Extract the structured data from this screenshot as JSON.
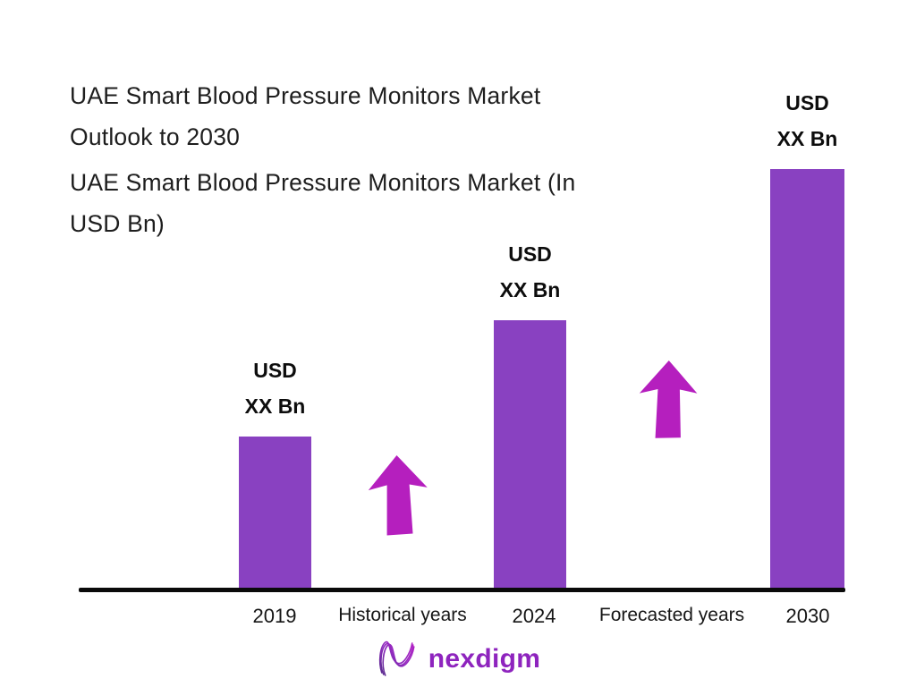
{
  "page": {
    "title_line1": "UAE Smart Blood Pressure Monitors Market",
    "title_line2": "Outlook to 2030",
    "subtitle_line1": "UAE Smart Blood Pressure Monitors Market (In",
    "subtitle_line2": "USD Bn)"
  },
  "chart_data": {
    "type": "bar",
    "title": "UAE Smart Blood Pressure Monitors Market Outlook to 2030",
    "subtitle": "UAE Smart Blood Pressure Monitors Market (In USD Bn)",
    "unit": "USD Bn",
    "categories": [
      "2019",
      "2024",
      "2030"
    ],
    "values": [
      "XX",
      "XX",
      "XX"
    ],
    "value_labels": [
      "USD XX Bn",
      "USD XX Bn",
      "USD XX Bn"
    ],
    "bar_pixel_heights": [
      171,
      301,
      470
    ],
    "period_annotations": [
      {
        "label": "Historical years",
        "position": "between 2019 and 2024"
      },
      {
        "label": "Forecasted years",
        "position": "between 2024 and 2030"
      }
    ],
    "xlabel": "",
    "ylabel": "",
    "legend": false,
    "gridlines": false,
    "y_axis_visible": false
  },
  "bars": [
    {
      "year": "2019",
      "label_line1": "USD",
      "label_line2": "XX Bn"
    },
    {
      "year": "2024",
      "label_line1": "USD",
      "label_line2": "XX Bn"
    },
    {
      "year": "2030",
      "label_line1": "USD",
      "label_line2": "XX Bn"
    }
  ],
  "axis_annotations": {
    "historical": "Historical years",
    "forecasted": "Forecasted years"
  },
  "icons": {
    "growth_arrow": "up-arrow",
    "logo_icon": "nexdigm-n-swirl"
  },
  "logo": {
    "text": "nexdigm"
  },
  "colors": {
    "bar": "#8941C1",
    "arrow": "#B51FBE",
    "title_text": "#1E1E1E",
    "axis_line": "#0A0A0A",
    "logo_text": "#8E24BE"
  }
}
